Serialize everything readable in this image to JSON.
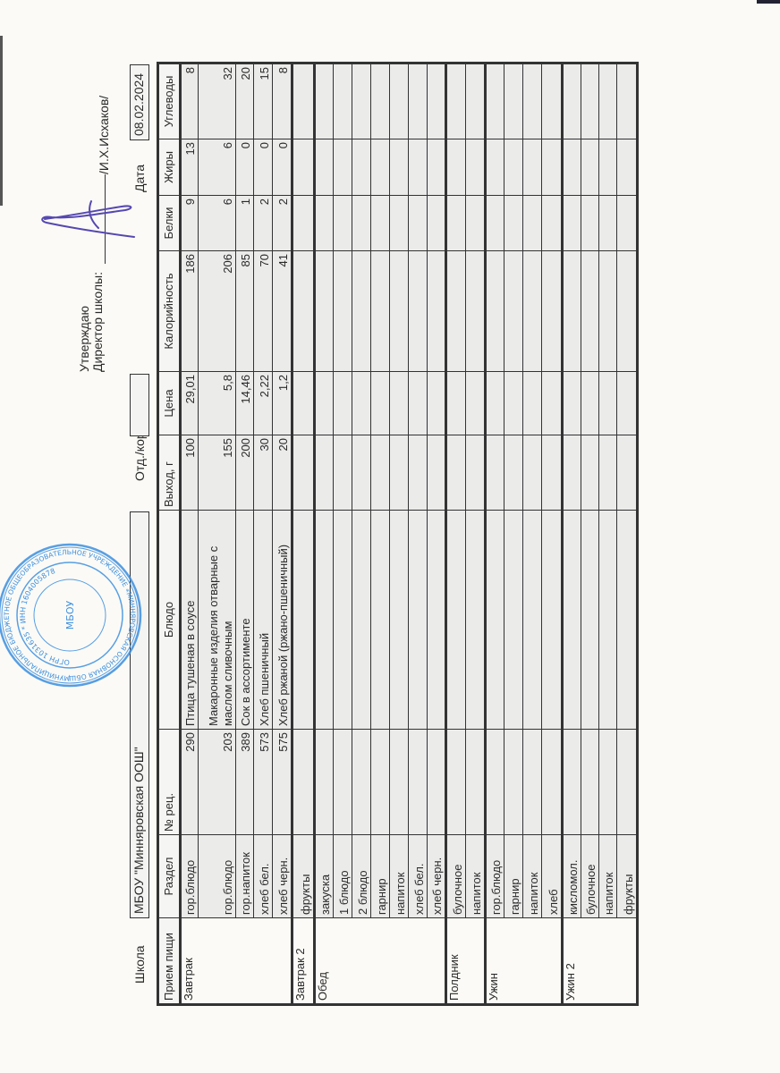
{
  "header": {
    "school_label": "Школа",
    "school_value": "МБОУ \"Минняровская ООШ\"",
    "dept_label": "Отд./корп",
    "dept_value": "",
    "date_label": "Дата",
    "date_value": "08.02.2024"
  },
  "approval": {
    "approve_text": "Утверждаю",
    "director_label": "Директор школы:",
    "director_name": "/И.Х.Исхаков/"
  },
  "stamp": {
    "center_text": "МБОУ",
    "ring_text": "МУНИЦИПАЛЬНОЕ БЮДЖЕТНОЕ ОБЩЕОБРАЗОВАТЕЛЬНОЕ УЧРЕЖДЕНИЕ «МИННЯРОВСКАЯ ОСНОВНАЯ ОБЩЕОБРАЗОВАТЕЛЬНАЯ ШКОЛА» МУНИЦИПАЛЬНОГО РАЙОНА РЕСПУБЛИКИ ТАТАРСТАН",
    "inner_text": "ОГРН 1031635 * ИНН 1604005878",
    "color": "#3b8fe0"
  },
  "signature_color": "#5548b0",
  "table": {
    "columns": [
      "Прием пищи",
      "Раздел",
      "№ рец.",
      "Блюдо",
      "Выход, г",
      "Цена",
      "Калорийность",
      "Белки",
      "Жиры",
      "Углеводы"
    ],
    "meals": [
      {
        "name": "Завтрак",
        "rows": [
          {
            "section": "гор.блюдо",
            "recipe": "290",
            "dish": "Птица тушеная в соусе",
            "yield": "100",
            "price": "29,01",
            "kcal": "186",
            "protein": "9",
            "fat": "13",
            "carbs": "8"
          },
          {
            "section": "гор.блюдо",
            "recipe": "203",
            "dish": "Макаронные изделия отварные с маслом сливочным",
            "yield": "155",
            "price": "5,8",
            "kcal": "206",
            "protein": "6",
            "fat": "6",
            "carbs": "32"
          },
          {
            "section": "гор.напиток",
            "recipe": "389",
            "dish": "Сок в ассортименте",
            "yield": "200",
            "price": "14,46",
            "kcal": "85",
            "protein": "1",
            "fat": "0",
            "carbs": "20"
          },
          {
            "section": "хлеб бел.",
            "recipe": "573",
            "dish": "Хлеб пшеничный",
            "yield": "30",
            "price": "2,22",
            "kcal": "70",
            "protein": "2",
            "fat": "0",
            "carbs": "15"
          },
          {
            "section": "хлеб черн.",
            "recipe": "575",
            "dish": "Хлеб ржаной (ржано-пшеничный)",
            "yield": "20",
            "price": "1,2",
            "kcal": "41",
            "protein": "2",
            "fat": "0",
            "carbs": "8"
          }
        ]
      },
      {
        "name": "Завтрак 2",
        "rows": [
          {
            "section": "фрукты"
          }
        ]
      },
      {
        "name": "Обед",
        "rows": [
          {
            "section": "закуска"
          },
          {
            "section": "1 блюдо"
          },
          {
            "section": "2 блюдо"
          },
          {
            "section": "гарнир"
          },
          {
            "section": "напиток"
          },
          {
            "section": "хлеб бел."
          },
          {
            "section": "хлеб черн."
          }
        ]
      },
      {
        "name": "Полдник",
        "rows": [
          {
            "section": "булочное"
          },
          {
            "section": "напиток"
          }
        ]
      },
      {
        "name": "Ужин",
        "rows": [
          {
            "section": "гор.блюдо"
          },
          {
            "section": "гарнир"
          },
          {
            "section": "напиток"
          },
          {
            "section": "хлеб"
          }
        ]
      },
      {
        "name": "Ужин 2",
        "rows": [
          {
            "section": "кисломол."
          },
          {
            "section": "булочное"
          },
          {
            "section": "напиток"
          },
          {
            "section": "фрукты"
          }
        ]
      }
    ]
  }
}
